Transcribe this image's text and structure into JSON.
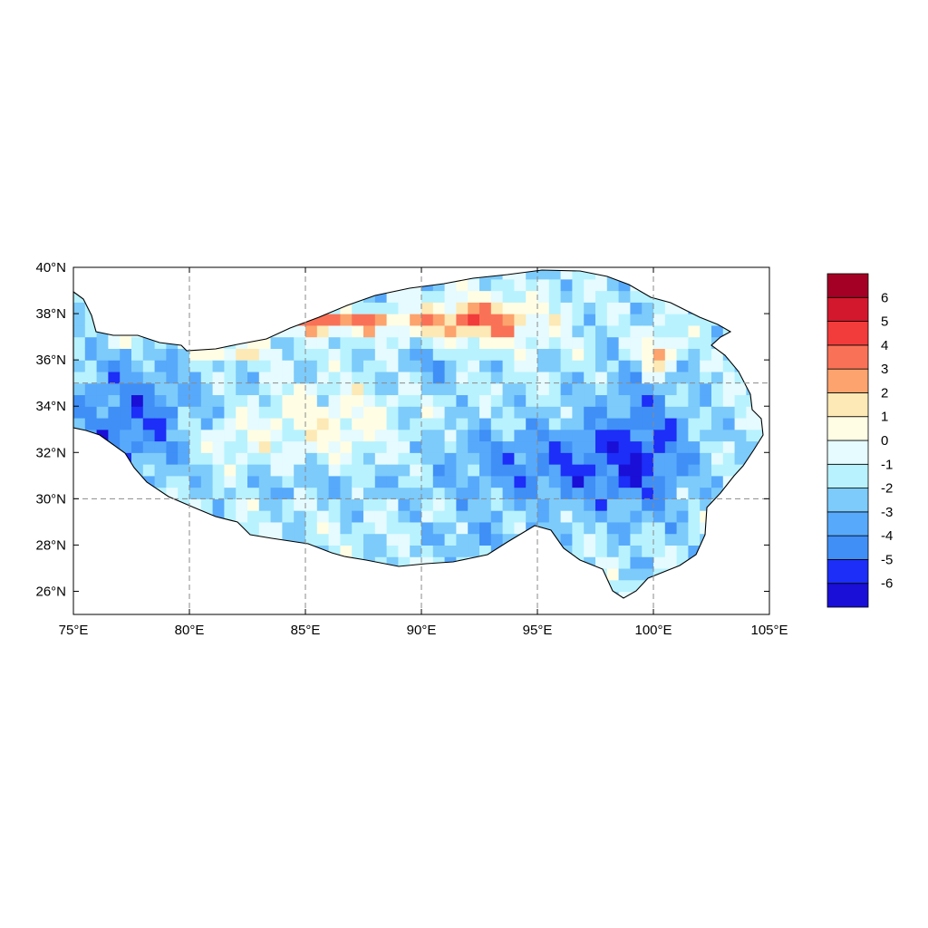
{
  "map": {
    "lon_range": [
      75,
      105
    ],
    "lat_range": [
      25,
      40
    ],
    "x_ticks": [
      {
        "value": 75,
        "label": "75°E"
      },
      {
        "value": 80,
        "label": "80°E"
      },
      {
        "value": 85,
        "label": "85°E"
      },
      {
        "value": 90,
        "label": "90°E"
      },
      {
        "value": 95,
        "label": "95°E"
      },
      {
        "value": 100,
        "label": "100°E"
      },
      {
        "value": 105,
        "label": "105°E"
      }
    ],
    "y_ticks": [
      {
        "value": 26,
        "label": "26°N"
      },
      {
        "value": 28,
        "label": "28°N"
      },
      {
        "value": 30,
        "label": "30°N"
      },
      {
        "value": 32,
        "label": "32°N"
      },
      {
        "value": 34,
        "label": "34°N"
      },
      {
        "value": 36,
        "label": "36°N"
      },
      {
        "value": 38,
        "label": "38°N"
      },
      {
        "value": 40,
        "label": "40°N"
      }
    ],
    "gridlines": {
      "lon": [
        80,
        85,
        90,
        95,
        100
      ],
      "lat": [
        30,
        35
      ],
      "style": "dashed"
    },
    "colorbar": {
      "orientation": "vertical",
      "placement": "right",
      "colors": [
        "#1a0fd6",
        "#1c2ef7",
        "#3f8ff7",
        "#57a9fb",
        "#7ccbfb",
        "#b8f2ff",
        "#e5fbff",
        "#fffde4",
        "#fde9b5",
        "#fca36e",
        "#f97257",
        "#f23b3b",
        "#d3182d",
        "#a40026"
      ],
      "labels": [
        "-6",
        "-5",
        "-4",
        "-3",
        "-2",
        "-1",
        "0",
        "1",
        "2",
        "3",
        "4",
        "5",
        "6"
      ]
    }
  }
}
